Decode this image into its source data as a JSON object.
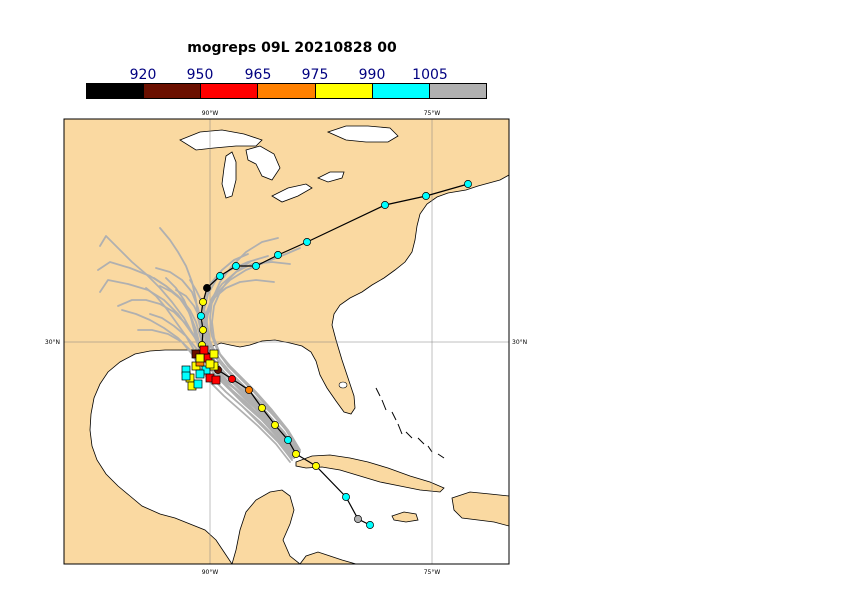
{
  "title": "mogreps 09L 20210828 00",
  "colorbar": {
    "labels": [
      "920",
      "950",
      "965",
      "975",
      "990",
      "1005"
    ],
    "colors": [
      "#000000",
      "#6b1000",
      "#ff0000",
      "#ff8000",
      "#ffff00",
      "#00ffff",
      "#b0b0b0"
    ]
  },
  "map": {
    "ticks_top": [
      "90°W",
      "75°W"
    ],
    "ticks_bottom": [
      "90°W",
      "75°W"
    ],
    "ticks_left": [
      "30°N"
    ],
    "ticks_right": [
      "30°N"
    ],
    "land_color": "#fad9a1",
    "sea_color": "#ffffff",
    "ensemble_track_color": "#b0b0b0"
  }
}
